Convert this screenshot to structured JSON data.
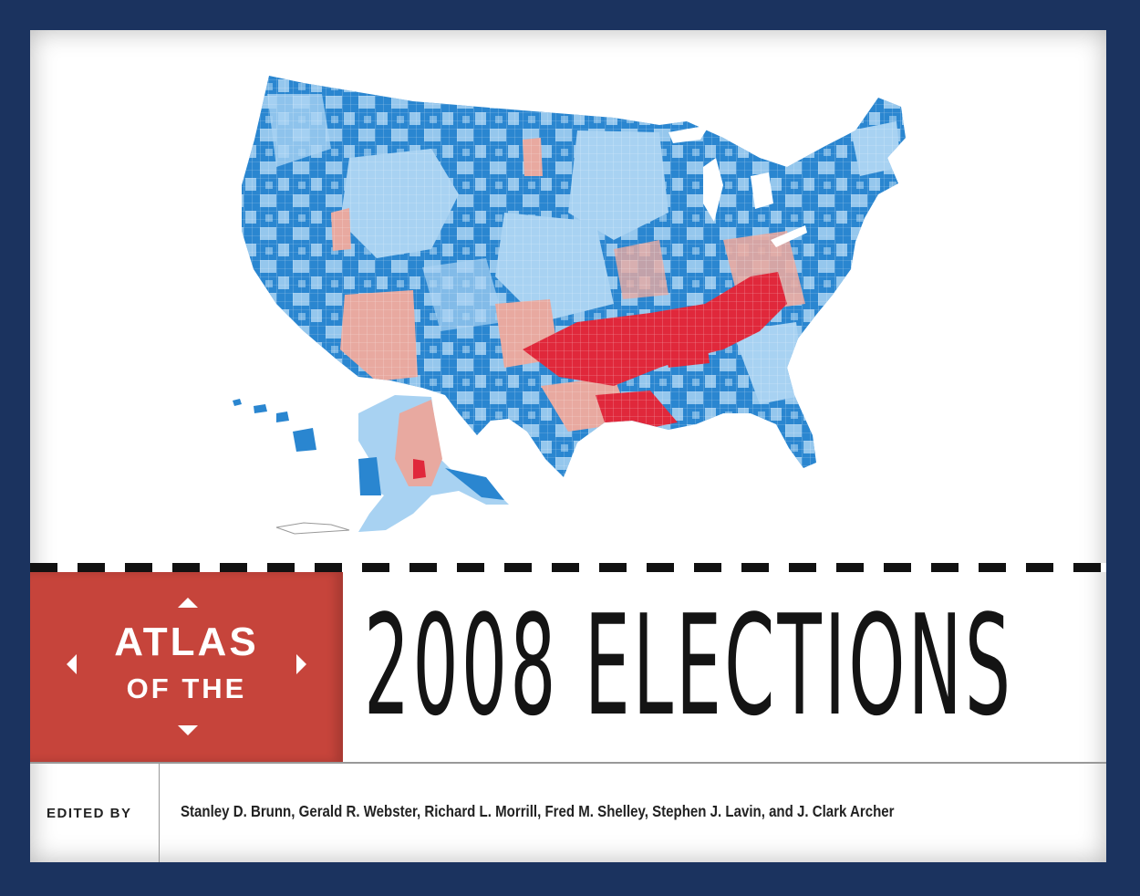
{
  "cover": {
    "title_line1": "ATLAS",
    "title_line2": "OF THE",
    "main_title": "2008 ELECTIONS",
    "edited_by_label": "EDITED BY",
    "editors": "Stanley D. Brunn, Gerald R. Webster, Richard L. Morrill, Fred M. Shelley, Stephen J. Lavin, and J. Clark Archer"
  },
  "colors": {
    "frame": "#1b335f",
    "red_box": "#c6443b",
    "map_blue_dark": "#2a86d0",
    "map_blue_light": "#a8d2f2",
    "map_pink": "#e8a9a0",
    "map_red": "#e0283b"
  },
  "icons": [
    "triangle-up-icon",
    "triangle-down-icon",
    "triangle-left-icon",
    "triangle-right-icon"
  ]
}
